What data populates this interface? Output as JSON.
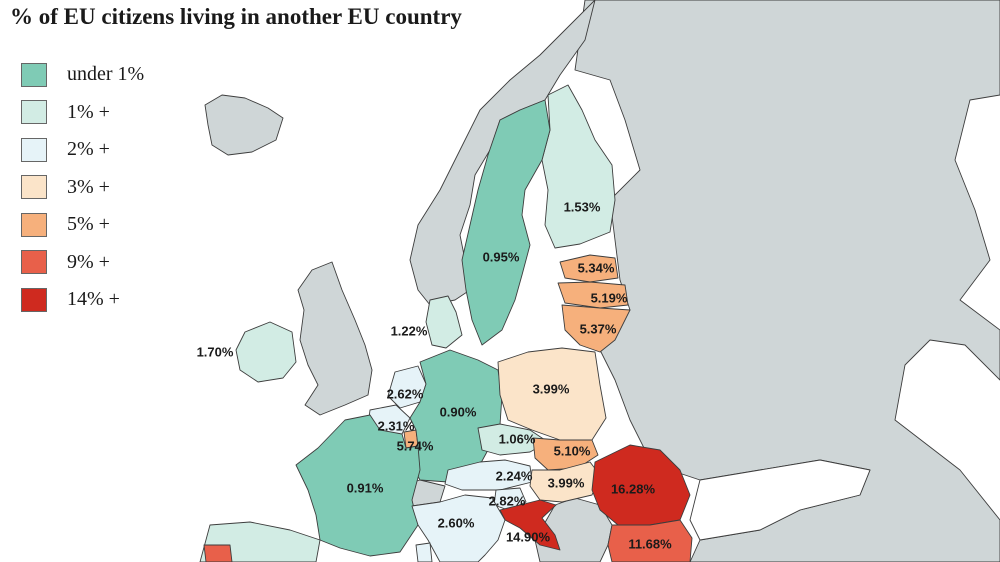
{
  "title": "% of EU citizens living in another EU country",
  "colors": {
    "sea": "#ffffff",
    "non_eu": "#cfd6d7",
    "border": "#3d3d3d",
    "under_1": "#7fcbb5",
    "1_plus": "#d2ece4",
    "2_plus": "#e6f3f8",
    "3_plus": "#fbe4c9",
    "5_plus": "#f6b07c",
    "9_plus": "#e8604a",
    "14_plus": "#cf2a1f"
  },
  "legend": [
    {
      "label": "under 1%",
      "color": "#7fcbb5"
    },
    {
      "label": "1% +",
      "color": "#d2ece4"
    },
    {
      "label": "2% +",
      "color": "#e6f3f8"
    },
    {
      "label": "3% +",
      "color": "#fbe4c9"
    },
    {
      "label": "5% +",
      "color": "#f6b07c"
    },
    {
      "label": "9% +",
      "color": "#e8604a"
    },
    {
      "label": "14% +",
      "color": "#cf2a1f"
    }
  ],
  "labels": [
    {
      "id": "finland",
      "value": "1.53%",
      "category": "1_plus"
    },
    {
      "id": "sweden",
      "value": "0.95%",
      "category": "under_1"
    },
    {
      "id": "estonia",
      "value": "5.34%",
      "category": "5_plus"
    },
    {
      "id": "latvia",
      "value": "5.19%",
      "category": "5_plus"
    },
    {
      "id": "lithuania",
      "value": "5.37%",
      "category": "5_plus"
    },
    {
      "id": "denmark",
      "value": "1.22%",
      "category": "1_plus"
    },
    {
      "id": "ireland",
      "value": "1.70%",
      "category": "1_plus"
    },
    {
      "id": "netherlands",
      "value": "2.62%",
      "category": "2_plus"
    },
    {
      "id": "germany",
      "value": "0.90%",
      "category": "under_1"
    },
    {
      "id": "poland",
      "value": "3.99%",
      "category": "3_plus"
    },
    {
      "id": "belgium",
      "value": "2.31%",
      "category": "2_plus"
    },
    {
      "id": "luxembourg",
      "value": "5.74%",
      "category": "5_plus"
    },
    {
      "id": "czechia",
      "value": "1.06%",
      "category": "1_plus"
    },
    {
      "id": "slovakia",
      "value": "5.10%",
      "category": "5_plus"
    },
    {
      "id": "austria",
      "value": "2.24%",
      "category": "2_plus"
    },
    {
      "id": "hungary",
      "value": "3.99%",
      "category": "3_plus"
    },
    {
      "id": "romania",
      "value": "16.28%",
      "category": "14_plus"
    },
    {
      "id": "france",
      "value": "0.91%",
      "category": "under_1"
    },
    {
      "id": "slovenia",
      "value": "2.82%",
      "category": "2_plus"
    },
    {
      "id": "italy",
      "value": "2.60%",
      "category": "2_plus"
    },
    {
      "id": "croatia",
      "value": "14.90%",
      "category": "14_plus"
    },
    {
      "id": "bulgaria",
      "value": "11.68%",
      "category": "9_plus"
    }
  ]
}
